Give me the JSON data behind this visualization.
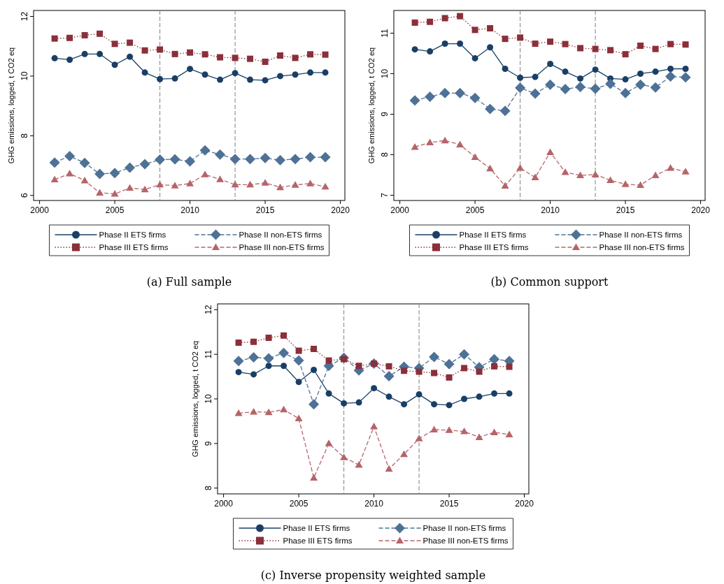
{
  "chart_data": [
    {
      "type": "line",
      "ylabel": "GHG emissions, logged, t CO2 eq",
      "x": [
        2001,
        2002,
        2003,
        2004,
        2005,
        2006,
        2007,
        2008,
        2009,
        2010,
        2011,
        2012,
        2013,
        2014,
        2015,
        2016,
        2017,
        2018,
        2019
      ],
      "xlim": [
        1999.6,
        2020.3
      ],
      "xticks": [
        2000,
        2005,
        2010,
        2015,
        2020
      ],
      "ylim": [
        5.83,
        12.2
      ],
      "yticks": [
        6,
        8,
        10,
        12
      ],
      "grid": false,
      "legend": "bottom",
      "annotations": [
        "(a) Full sample"
      ],
      "ref_lines": [
        {
          "axis": "x",
          "value": 2008,
          "color": "#808080",
          "line_style": "dashed"
        },
        {
          "axis": "x",
          "value": 2013,
          "color": "#808080",
          "line_style": "dashed"
        }
      ],
      "series": [
        {
          "name": "Phase II ETS firms",
          "color": "#1a3f66",
          "marker": "circle",
          "line_style": "solid",
          "values": [
            10.6,
            10.55,
            10.74,
            10.74,
            10.38,
            10.65,
            10.12,
            9.9,
            9.92,
            10.24,
            10.05,
            9.88,
            10.1,
            9.88,
            9.86,
            10.0,
            10.05,
            10.12,
            10.12
          ]
        },
        {
          "name": "Phase II non-ETS firms",
          "color": "#4e7196",
          "marker": "diamond",
          "line_style": "dashed",
          "values": [
            7.1,
            7.32,
            7.09,
            6.72,
            6.75,
            6.93,
            7.05,
            7.2,
            7.21,
            7.14,
            7.51,
            7.37,
            7.22,
            7.22,
            7.25,
            7.18,
            7.22,
            7.28,
            7.28
          ]
        },
        {
          "name": "Phase III ETS firms",
          "color": "#8b2f3a",
          "marker": "square",
          "line_style": "dotted",
          "values": [
            11.26,
            11.28,
            11.37,
            11.42,
            11.08,
            11.12,
            10.86,
            10.89,
            10.74,
            10.79,
            10.73,
            10.63,
            10.61,
            10.58,
            10.48,
            10.69,
            10.61,
            10.73,
            10.72
          ]
        },
        {
          "name": "Phase III non-ETS firms",
          "color": "#b5646a",
          "marker": "triangle",
          "line_style": "dashed",
          "values": [
            6.53,
            6.73,
            6.5,
            6.09,
            6.05,
            6.25,
            6.2,
            6.36,
            6.33,
            6.4,
            6.7,
            6.54,
            6.36,
            6.36,
            6.42,
            6.27,
            6.35,
            6.4,
            6.29
          ]
        }
      ]
    },
    {
      "type": "line",
      "ylabel": "GHG emissions, logged, t CO2 eq",
      "x": [
        2001,
        2002,
        2003,
        2004,
        2005,
        2006,
        2007,
        2008,
        2009,
        2010,
        2011,
        2012,
        2013,
        2014,
        2015,
        2016,
        2017,
        2018,
        2019
      ],
      "xlim": [
        1999.6,
        2020.3
      ],
      "xticks": [
        2000,
        2005,
        2010,
        2015,
        2020
      ],
      "ylim": [
        6.87,
        11.56
      ],
      "yticks": [
        7,
        8,
        9,
        10,
        11
      ],
      "grid": false,
      "legend": "bottom",
      "annotations": [
        "(b) Common support"
      ],
      "ref_lines": [
        {
          "axis": "x",
          "value": 2008,
          "color": "#808080",
          "line_style": "dashed"
        },
        {
          "axis": "x",
          "value": 2013,
          "color": "#808080",
          "line_style": "dashed"
        }
      ],
      "series": [
        {
          "name": "Phase II ETS firms",
          "color": "#1a3f66",
          "marker": "circle",
          "line_style": "solid",
          "values": [
            10.6,
            10.55,
            10.74,
            10.74,
            10.38,
            10.65,
            10.12,
            9.9,
            9.92,
            10.24,
            10.05,
            9.88,
            10.1,
            9.88,
            9.86,
            10.0,
            10.05,
            10.12,
            10.12
          ]
        },
        {
          "name": "Phase II non-ETS firms",
          "color": "#4e7196",
          "marker": "diamond",
          "line_style": "dashed",
          "values": [
            9.34,
            9.43,
            9.52,
            9.52,
            9.4,
            9.13,
            9.08,
            9.65,
            9.51,
            9.73,
            9.62,
            9.67,
            9.63,
            9.75,
            9.52,
            9.73,
            9.66,
            9.93,
            9.91
          ]
        },
        {
          "name": "Phase III ETS firms",
          "color": "#8b2f3a",
          "marker": "square",
          "line_style": "dotted",
          "values": [
            11.26,
            11.28,
            11.37,
            11.42,
            11.08,
            11.12,
            10.86,
            10.89,
            10.74,
            10.79,
            10.73,
            10.63,
            10.61,
            10.58,
            10.48,
            10.69,
            10.61,
            10.73,
            10.72
          ]
        },
        {
          "name": "Phase III non-ETS firms",
          "color": "#b5646a",
          "marker": "triangle",
          "line_style": "dashed",
          "values": [
            8.19,
            8.3,
            8.35,
            8.25,
            7.94,
            7.66,
            7.23,
            7.67,
            7.44,
            8.06,
            7.57,
            7.49,
            7.51,
            7.37,
            7.27,
            7.25,
            7.49,
            7.67,
            7.58
          ]
        }
      ]
    },
    {
      "type": "line",
      "ylabel": "GHG emissions, logged, t CO2 eq",
      "x": [
        2001,
        2002,
        2003,
        2004,
        2005,
        2006,
        2007,
        2008,
        2009,
        2010,
        2011,
        2012,
        2013,
        2014,
        2015,
        2016,
        2017,
        2018,
        2019
      ],
      "xlim": [
        1999.6,
        2020.3
      ],
      "xticks": [
        2000,
        2005,
        2010,
        2015,
        2020
      ],
      "ylim": [
        7.87,
        12.13
      ],
      "yticks": [
        8,
        9,
        10,
        11,
        12
      ],
      "grid": false,
      "legend": "bottom",
      "annotations": [
        "(c) Inverse propensity weighted sample"
      ],
      "ref_lines": [
        {
          "axis": "x",
          "value": 2008,
          "color": "#808080",
          "line_style": "dashed"
        },
        {
          "axis": "x",
          "value": 2013,
          "color": "#808080",
          "line_style": "dashed"
        }
      ],
      "series": [
        {
          "name": "Phase II ETS firms",
          "color": "#1a3f66",
          "marker": "circle",
          "line_style": "solid",
          "values": [
            10.6,
            10.55,
            10.74,
            10.74,
            10.38,
            10.65,
            10.12,
            9.9,
            9.92,
            10.24,
            10.05,
            9.88,
            10.1,
            9.88,
            9.86,
            10.0,
            10.05,
            10.12,
            10.12
          ]
        },
        {
          "name": "Phase II non-ETS firms",
          "color": "#4e7196",
          "marker": "diamond",
          "line_style": "dashed",
          "values": [
            10.85,
            10.93,
            10.91,
            11.03,
            10.86,
            9.88,
            10.74,
            10.92,
            10.64,
            10.79,
            10.51,
            10.72,
            10.69,
            10.94,
            10.78,
            11.0,
            10.71,
            10.89,
            10.85
          ]
        },
        {
          "name": "Phase III ETS firms",
          "color": "#8b2f3a",
          "marker": "square",
          "line_style": "dotted",
          "values": [
            11.26,
            11.28,
            11.37,
            11.42,
            11.08,
            11.12,
            10.86,
            10.89,
            10.74,
            10.79,
            10.73,
            10.63,
            10.61,
            10.58,
            10.48,
            10.69,
            10.61,
            10.73,
            10.72
          ]
        },
        {
          "name": "Phase III non-ETS firms",
          "color": "#b5646a",
          "marker": "triangle",
          "line_style": "dashed",
          "values": [
            9.68,
            9.71,
            9.7,
            9.76,
            9.56,
            8.23,
            9.0,
            8.69,
            8.52,
            9.38,
            8.43,
            8.76,
            9.11,
            9.31,
            9.3,
            9.27,
            9.14,
            9.25,
            9.2
          ]
        }
      ]
    }
  ]
}
